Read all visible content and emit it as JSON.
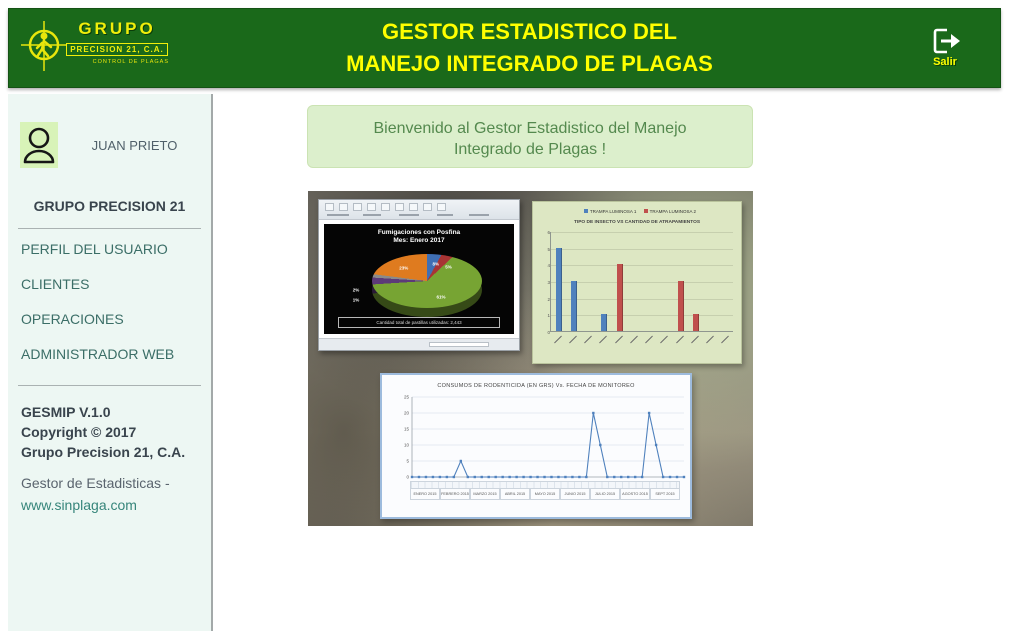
{
  "header": {
    "bg_color": "#1a691a",
    "title_color": "#ffff00",
    "title_line1": "GESTOR ESTADISTICO DEL",
    "title_line2": "MANEJO INTEGRADO DE PLAGAS",
    "logo": {
      "name_top": "GRUPO",
      "name_box": "PRECISION 21, C.A.",
      "tagline": "CONTROL DE PLAGAS",
      "color": "#f0ee0a"
    },
    "exit": {
      "label": "Salir"
    }
  },
  "sidebar": {
    "user_name": "JUAN PRIETO",
    "org_name": "GRUPO PRECISION 21",
    "menu": [
      {
        "label": "PERFIL DEL USUARIO"
      },
      {
        "label": "CLIENTES"
      },
      {
        "label": "OPERACIONES"
      },
      {
        "label": "ADMINISTRADOR WEB"
      }
    ],
    "footer": {
      "line1": "GESMIP V.1.0",
      "line2": "Copyright © 2017",
      "line3": "Grupo Precision 21, C.A.",
      "line4": "Gestor de Estadisticas -",
      "link": "www.sinplaga.com"
    }
  },
  "main": {
    "welcome_text": "Bienvenido al Gestor Estadistico del Manejo Integrado de Plagas !"
  },
  "chart_data": [
    {
      "type": "pie",
      "title": "Fumigaciones con Posfina",
      "subtitle": "Mes: Enero 2017",
      "caption": "Cantidad total de pastillas utilizadas: 2,443",
      "background": "#050505",
      "note": "slice names illegible in source photo; percentages estimated",
      "slices": [
        {
          "label": "8%",
          "value": 8,
          "color": "#3f6fb4"
        },
        {
          "label": "5%",
          "value": 5,
          "color": "#a83434"
        },
        {
          "label": "61%",
          "value": 61,
          "color": "#77a433"
        },
        {
          "label": "2%",
          "value": 2,
          "color": "#5c3a78"
        },
        {
          "label": "1%",
          "value": 1,
          "color": "#8a8a8a"
        },
        {
          "label": "23%",
          "value": 23,
          "color": "#df7b1f"
        }
      ]
    },
    {
      "type": "bar",
      "title": "TIPO DE INSECTO VS CANTIDAD DE ATRAPAMIENTOS",
      "legend": [
        "TRAMPA LUMINOSA 1",
        "TRAMPA LUMINOSA 2"
      ],
      "categories_note": "12 x-axis labels illegible in source photo",
      "num_categories": 12,
      "ylim": [
        0,
        6
      ],
      "background": "#dde7c3",
      "series": [
        {
          "name": "TRAMPA LUMINOSA 1",
          "color": "#4f81bd",
          "values": [
            5,
            3,
            0,
            1,
            0,
            0,
            0,
            0,
            0,
            0,
            0,
            0
          ]
        },
        {
          "name": "TRAMPA LUMINOSA 2",
          "color": "#c0504d",
          "values": [
            0,
            0,
            0,
            0,
            4,
            0,
            0,
            0,
            3,
            1,
            0,
            0
          ]
        }
      ]
    },
    {
      "type": "line",
      "title": "CONSUMOS DE RODENTICIDA (EN GRS)  Vs.  FECHA DE MONITOREO",
      "ylim": [
        0,
        25
      ],
      "yticks": [
        0,
        5,
        10,
        15,
        20,
        25
      ],
      "series_color": "#4f81bd",
      "values": [
        0,
        0,
        0,
        0,
        0,
        0,
        0,
        5,
        0,
        0,
        0,
        0,
        0,
        0,
        0,
        0,
        0,
        0,
        0,
        0,
        0,
        0,
        0,
        0,
        0,
        0,
        20,
        10,
        0,
        0,
        0,
        0,
        0,
        0,
        20,
        10,
        0,
        0,
        0,
        0
      ],
      "x_labels_note": "individual date labels illegible in source photo",
      "month_groups": [
        "ENERO 2015",
        "FEBRERO 2015",
        "MARZO 2015",
        "ABRIL 2015",
        "MAYO 2015",
        "JUNIO 2015",
        "JULIO 2015",
        "AGOSTO 2015",
        "SEPT 2015"
      ]
    }
  ]
}
